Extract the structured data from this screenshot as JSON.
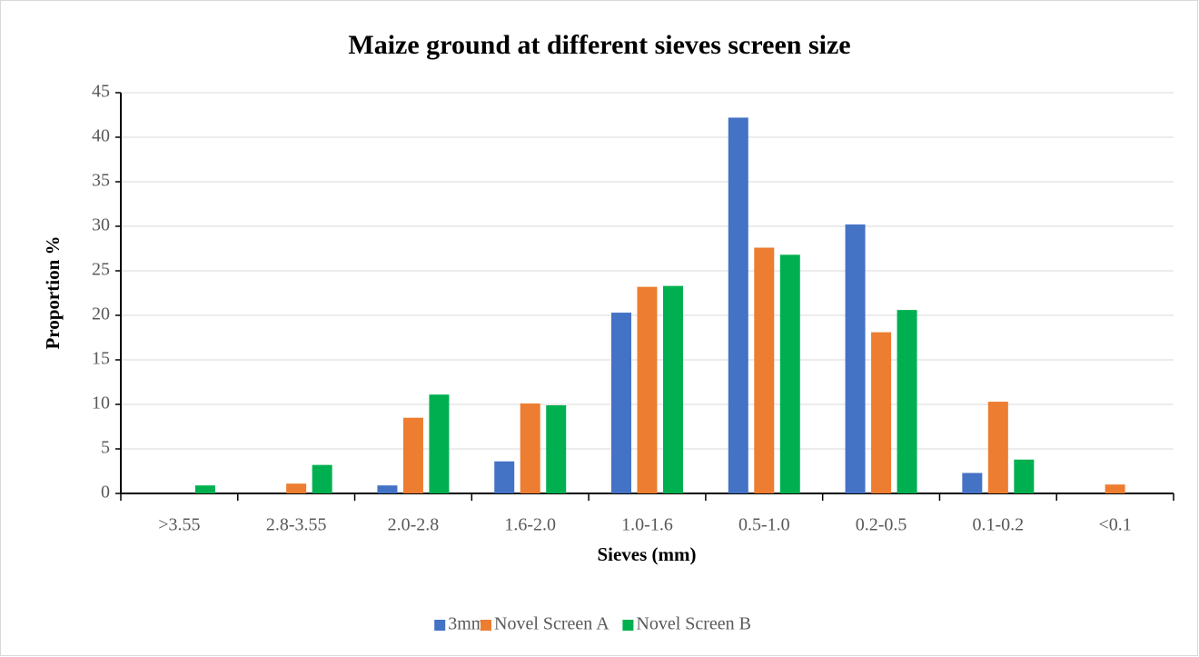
{
  "chart_data": {
    "type": "bar",
    "title": "Maize ground at different sieves screen size",
    "x_label": "Sieves (mm)",
    "y_label": "Proportion %",
    "categories": [
      ">3.55",
      "2.8-3.55",
      "2.0-2.8",
      "1.6-2.0",
      "1.0-1.6",
      "0.5-1.0",
      "0.2-0.5",
      "0.1-0.2",
      "<0.1"
    ],
    "series": [
      {
        "name": "3mm",
        "color": "#4472c4",
        "values": [
          0,
          0,
          0.9,
          3.6,
          20.3,
          42.2,
          30.2,
          2.3,
          0
        ]
      },
      {
        "name": "Novel Screen A",
        "color": "#ed7d31",
        "values": [
          0,
          1.1,
          8.5,
          10.1,
          23.2,
          27.6,
          18.1,
          10.3,
          1.0
        ]
      },
      {
        "name": "Novel Screen B",
        "color": "#00b050",
        "values": [
          0.9,
          3.2,
          11.1,
          9.9,
          23.3,
          26.8,
          20.6,
          3.8,
          0
        ]
      }
    ],
    "ylim": [
      0,
      45
    ],
    "yticks": [
      0,
      5,
      10,
      15,
      20,
      25,
      30,
      35,
      40,
      45
    ],
    "grid": true,
    "legend": "bottom"
  }
}
